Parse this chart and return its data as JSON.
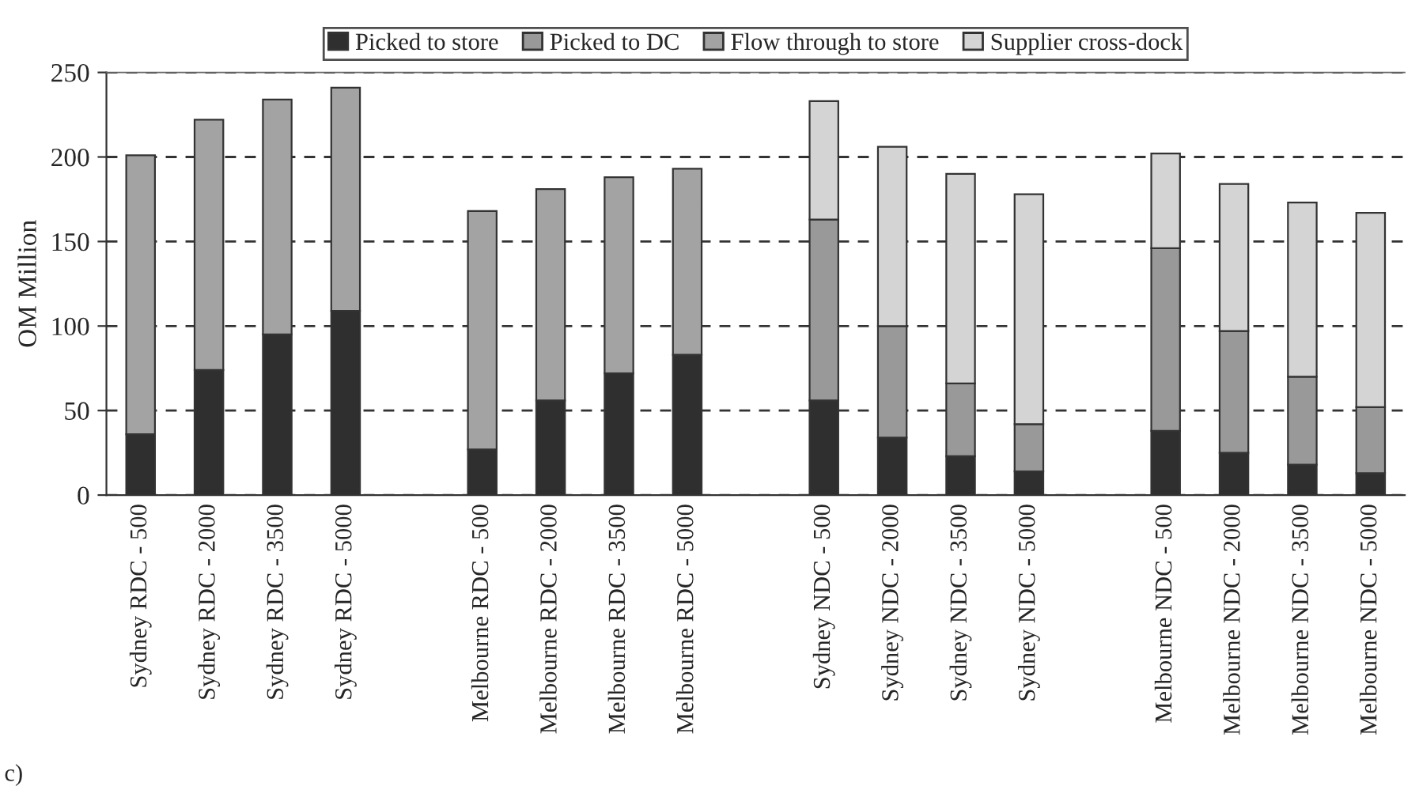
{
  "chart_data": {
    "type": "bar",
    "stacked": true,
    "ylabel": "OM Million",
    "ylim": [
      0,
      250
    ],
    "yticks": [
      0,
      50,
      100,
      150,
      200,
      250
    ],
    "grid": "y",
    "legend": "top",
    "annotations": [
      "c)"
    ],
    "categories": [
      "Sydney RDC - 500",
      "Sydney RDC - 2000",
      "Sydney RDC - 3500",
      "Sydney RDC - 5000",
      null,
      "Melbourne RDC - 500",
      "Melbourne RDC - 2000",
      "Melbourne RDC - 3500",
      "Melbourne RDC - 5000",
      null,
      "Sydney NDC - 500",
      "Sydney NDC - 2000",
      "Sydney NDC - 3500",
      "Sydney NDC - 5000",
      null,
      "Melbourne NDC - 500",
      "Melbourne NDC - 2000",
      "Melbourne NDC - 3500",
      "Melbourne NDC - 5000"
    ],
    "series": [
      {
        "name": "Picked to store",
        "color": "#2f2f2f",
        "values": [
          36,
          74,
          95,
          109,
          null,
          27,
          56,
          72,
          83,
          null,
          56,
          34,
          23,
          14,
          null,
          38,
          25,
          18,
          13
        ]
      },
      {
        "name": "Picked to DC",
        "color": "#999999",
        "values": [
          null,
          null,
          null,
          null,
          null,
          null,
          null,
          null,
          null,
          null,
          107,
          66,
          43,
          28,
          null,
          108,
          72,
          52,
          39
        ]
      },
      {
        "name": "Flow through to store",
        "color": "#a3a3a3",
        "values": [
          165,
          148,
          139,
          132,
          null,
          141,
          125,
          116,
          110,
          null,
          null,
          null,
          null,
          null,
          null,
          null,
          null,
          null,
          null
        ]
      },
      {
        "name": "Supplier cross-dock",
        "color": "#d4d4d4",
        "values": [
          null,
          null,
          null,
          null,
          null,
          null,
          null,
          null,
          null,
          null,
          70,
          106,
          124,
          136,
          null,
          56,
          87,
          103,
          115
        ]
      }
    ]
  }
}
